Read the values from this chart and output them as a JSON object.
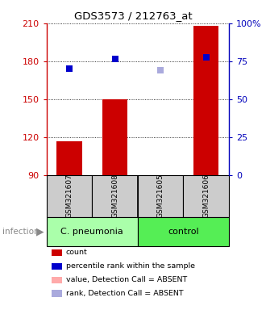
{
  "title": "GDS3573 / 212763_at",
  "samples": [
    "GSM321607",
    "GSM321608",
    "GSM321605",
    "GSM321606"
  ],
  "ylim_left": [
    90,
    210
  ],
  "ylim_right": [
    0,
    100
  ],
  "yticks_left": [
    90,
    120,
    150,
    180,
    210
  ],
  "yticks_right": [
    0,
    25,
    50,
    75,
    100
  ],
  "ytick_right_labels": [
    "0",
    "25",
    "50",
    "75",
    "100%"
  ],
  "bar_values": [
    117,
    150,
    90,
    208
  ],
  "bar_colors": [
    "#cc0000",
    "#cc0000",
    "#ffaaaa",
    "#cc0000"
  ],
  "bar_bottom": 90,
  "dot_values": [
    174,
    182,
    173,
    183
  ],
  "dot_colors": [
    "#0000cc",
    "#0000cc",
    "#aaaadd",
    "#0000cc"
  ],
  "legend_items": [
    {
      "color": "#cc0000",
      "label": "count"
    },
    {
      "color": "#0000cc",
      "label": "percentile rank within the sample"
    },
    {
      "color": "#ffaaaa",
      "label": "value, Detection Call = ABSENT"
    },
    {
      "color": "#aaaadd",
      "label": "rank, Detection Call = ABSENT"
    }
  ],
  "infection_label": "infection",
  "left_color": "#cc0000",
  "right_color": "#0000bb",
  "sample_box_color": "#cccccc",
  "group_items": [
    {
      "label": "C. pneumonia",
      "start": 0,
      "end": 2,
      "color": "#aaffaa"
    },
    {
      "label": "control",
      "start": 2,
      "end": 4,
      "color": "#55ee55"
    }
  ],
  "background_color": "#ffffff"
}
